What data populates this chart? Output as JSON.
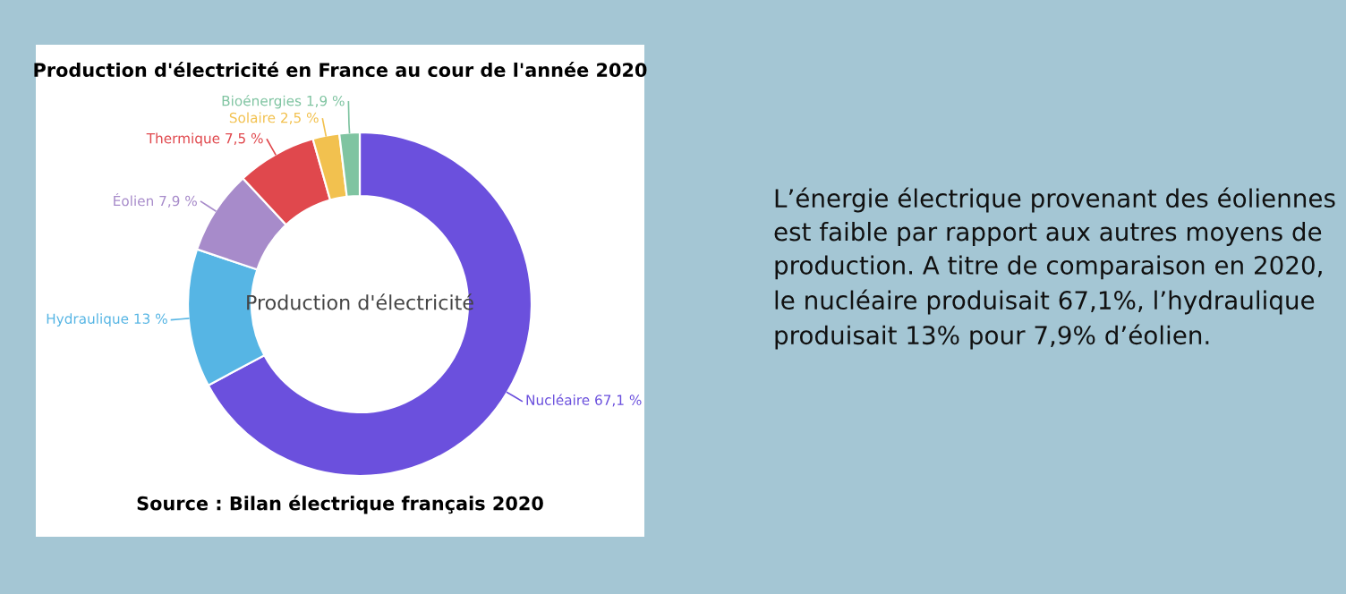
{
  "chart_data": {
    "type": "donut",
    "title": "Production d'électricité en France au cour de l'année 2020",
    "categories": [
      "Nucléaire",
      "Hydraulique",
      "Éolien",
      "Thermique",
      "Solaire",
      "Bioénergies"
    ],
    "values": [
      67.1,
      13,
      7.9,
      7.5,
      2.5,
      1.9
    ],
    "value_labels": [
      "67,1 %",
      "13 %",
      "7,9 %",
      "7,5 %",
      "2,5 %",
      "1,9 %"
    ],
    "colors": [
      "#6b50dd",
      "#56b5e4",
      "#a78bca",
      "#e0484d",
      "#f2c14f",
      "#7fc4a1"
    ],
    "annotations": [
      "Production d'électricité",
      "Source : Bilan électrique français 2020",
      "L’énergie électrique provenant des éoliennes est faible par rapport aux autres moyens de production. A titre de comparaison en 2020, le nucléaire produisait 67,1%, l’hydraulique produisait 13% pour 7,9% d’éolien."
    ]
  }
}
